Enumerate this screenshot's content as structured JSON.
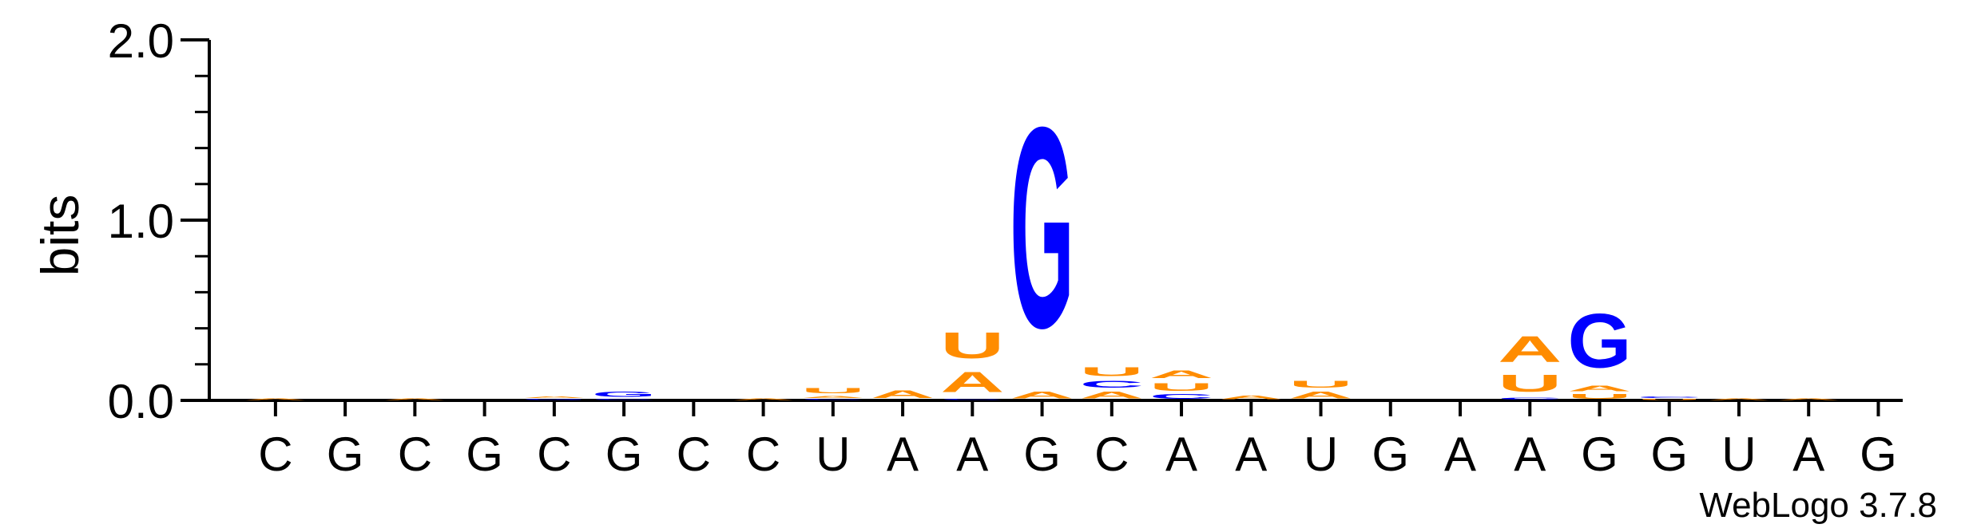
{
  "chart_data": {
    "type": "sequence-logo",
    "ylabel": "bits",
    "ylim": [
      0,
      2.0
    ],
    "yticks": [
      "0.0",
      "1.0",
      "2.0"
    ],
    "positions": [
      "C",
      "G",
      "C",
      "G",
      "C",
      "G",
      "C",
      "C",
      "U",
      "A",
      "A",
      "G",
      "C",
      "A",
      "A",
      "U",
      "G",
      "A",
      "A",
      "G",
      "G",
      "U",
      "A",
      "G"
    ],
    "colors": {
      "A": "#FF8C00",
      "C": "#0000FF",
      "G": "#0000FF",
      "U": "#FF8C00"
    },
    "stacks": [
      [
        {
          "base": "A",
          "bits": 0.015
        }
      ],
      [],
      [
        {
          "base": "A",
          "bits": 0.012
        }
      ],
      [],
      [
        {
          "base": "G",
          "bits": 0.01
        },
        {
          "base": "A",
          "bits": 0.012
        }
      ],
      [
        {
          "base": "C",
          "bits": 0.01
        },
        {
          "base": "G",
          "bits": 0.045
        }
      ],
      [],
      [
        {
          "base": "A",
          "bits": 0.012
        }
      ],
      [
        {
          "base": "C",
          "bits": 0.01
        },
        {
          "base": "A",
          "bits": 0.02
        },
        {
          "base": "U",
          "bits": 0.045
        }
      ],
      [
        {
          "base": "A",
          "bits": 0.07
        }
      ],
      [
        {
          "base": "C",
          "bits": 0.01
        },
        {
          "base": "A",
          "bits": 0.18
        },
        {
          "base": "U",
          "bits": 0.23
        }
      ],
      [
        {
          "base": "A",
          "bits": 0.06
        },
        {
          "base": "G",
          "bits": 1.78
        }
      ],
      [
        {
          "base": "A",
          "bits": 0.06
        },
        {
          "base": "C",
          "bits": 0.06
        },
        {
          "base": "U",
          "bits": 0.08
        }
      ],
      [
        {
          "base": "C",
          "bits": 0.04
        },
        {
          "base": "U",
          "bits": 0.07
        },
        {
          "base": "A",
          "bits": 0.07
        }
      ],
      [
        {
          "base": "A",
          "bits": 0.03
        }
      ],
      [
        {
          "base": "A",
          "bits": 0.06
        },
        {
          "base": "U",
          "bits": 0.06
        }
      ],
      [],
      [],
      [
        {
          "base": "C",
          "bits": 0.02
        },
        {
          "base": "U",
          "bits": 0.15
        },
        {
          "base": "A",
          "bits": 0.23
        }
      ],
      [
        {
          "base": "U",
          "bits": 0.04
        },
        {
          "base": "A",
          "bits": 0.05
        },
        {
          "base": "G",
          "bits": 0.48
        }
      ],
      [
        {
          "base": "U",
          "bits": 0.01
        },
        {
          "base": "C",
          "bits": 0.015
        }
      ],
      [
        {
          "base": "A",
          "bits": 0.012
        }
      ],
      [
        {
          "base": "A",
          "bits": 0.015
        }
      ],
      []
    ]
  },
  "credit": "WebLogo 3.7.8"
}
